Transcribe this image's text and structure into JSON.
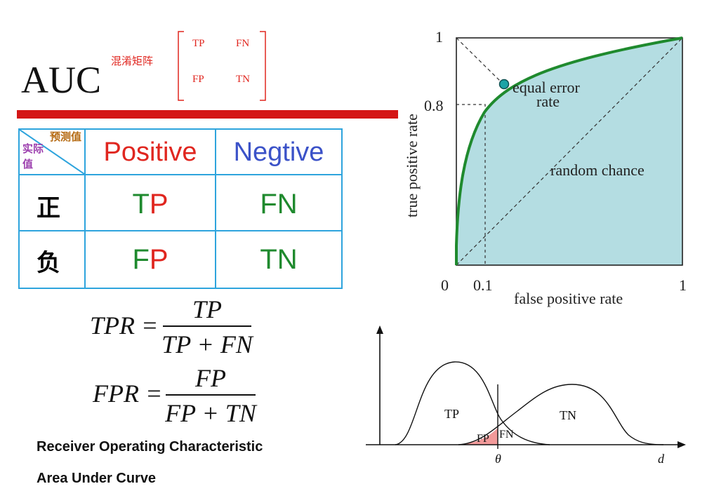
{
  "title": "AUC",
  "confusion_label": "混淆矩阵",
  "mini_matrix": {
    "tl": "TP",
    "tr": "FN",
    "bl": "FP",
    "br": "TN"
  },
  "table": {
    "corner": {
      "predicted": "预测值",
      "actual": "实际值"
    },
    "col_positive": "Positive",
    "col_negative": "Negtive",
    "row_positive": "正",
    "row_negative": "负",
    "cells": {
      "tp": "TP",
      "fn": "FN",
      "fp": "FP",
      "tn": "TN"
    }
  },
  "formulas": {
    "tpr": {
      "lhs": "TPR =",
      "num": "TP",
      "den": "TP + FN"
    },
    "fpr": {
      "lhs": "FPR =",
      "num": "FP",
      "den": "FP + TN"
    }
  },
  "captions": {
    "roc": "Receiver Operating Characteristic",
    "auc": "Area Under Curve"
  },
  "roc_chart": {
    "ylabel": "true positive rate",
    "xlabel": "false positive rate",
    "ticks_y": [
      "1",
      "0.8"
    ],
    "ticks_x": [
      "0",
      "0.1",
      "1"
    ],
    "annotation_eer": "equal error",
    "annotation_eer2": "rate",
    "annotation_random": "random chance"
  },
  "dist_chart": {
    "label_tp": "TP",
    "label_tn": "TN",
    "label_fp": "FP",
    "label_fn": "FN",
    "label_theta": "θ",
    "label_d": "d"
  },
  "colors": {
    "roc_fill": "#b4dde2",
    "roc_curve": "#1f8a2e",
    "accent_red": "#d41616",
    "table_border": "#2ea4dd"
  }
}
